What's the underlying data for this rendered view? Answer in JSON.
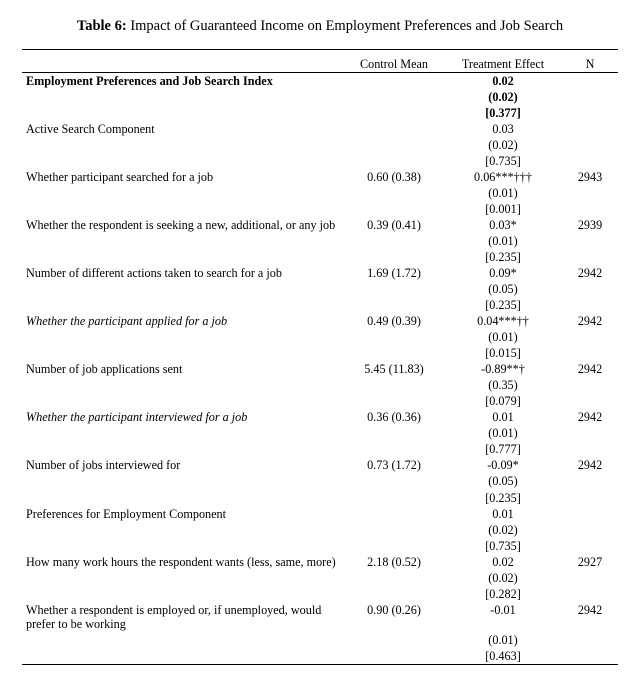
{
  "title_prefix": "Table 6:",
  "title_rest": " Impact of Guaranteed Income on Employment Preferences and Job Search",
  "headers": {
    "ctrl": "Control Mean",
    "te": "Treatment Effect",
    "n": "N"
  },
  "rows": [
    {
      "label": "Employment Preferences and Job Search Index",
      "bold": true,
      "ctrl": "",
      "te": "0.02",
      "te2": "(0.02)",
      "te3": "[0.377]",
      "n": "",
      "te_bold": true
    },
    {
      "label": "Active Search Component",
      "ctrl": "",
      "te": "0.03",
      "te2": "(0.02)",
      "te3": "[0.735]",
      "n": ""
    },
    {
      "label": "Whether participant searched for a job",
      "ctrl": "0.60 (0.38)",
      "te": "0.06***†††",
      "te2": "(0.01)",
      "te3": "[0.001]",
      "n": "2943"
    },
    {
      "label": "Whether the respondent is seeking a new, additional, or any job",
      "ctrl": "0.39 (0.41)",
      "te": "0.03*",
      "te2": "(0.01)",
      "te3": "[0.235]",
      "n": "2939"
    },
    {
      "label": "Number of different actions taken to search for a job",
      "ctrl": "1.69 (1.72)",
      "te": "0.09*",
      "te2": "(0.05)",
      "te3": "[0.235]",
      "n": "2942"
    },
    {
      "label": "Whether the participant applied for a job",
      "ital": true,
      "ctrl": "0.49 (0.39)",
      "te": "0.04***††",
      "te2": "(0.01)",
      "te3": "[0.015]",
      "n": "2942"
    },
    {
      "label": "Number of job applications sent",
      "ctrl": "5.45 (11.83)",
      "te": "-0.89**†",
      "te2": "(0.35)",
      "te3": "[0.079]",
      "n": "2942"
    },
    {
      "label": "Whether the participant interviewed for a job",
      "ital": true,
      "ctrl": "0.36 (0.36)",
      "te": "0.01",
      "te2": "(0.01)",
      "te3": "[0.777]",
      "n": "2942"
    },
    {
      "label": "Number of jobs interviewed for",
      "ctrl": "0.73 (1.72)",
      "te": "-0.09*",
      "te2": "(0.05)",
      "te3": "[0.235]",
      "n": "2942"
    },
    {
      "label": "Preferences for Employment Component",
      "ctrl": "",
      "te": "0.01",
      "te2": "(0.02)",
      "te3": "[0.735]",
      "n": ""
    },
    {
      "label": "How many work hours the respondent wants (less, same, more)",
      "ctrl": "2.18 (0.52)",
      "te": "0.02",
      "te2": "(0.02)",
      "te3": "[0.282]",
      "n": "2927"
    },
    {
      "label": "Whether a respondent is employed or, if unemployed, would prefer to be working",
      "ctrl": "0.90 (0.26)",
      "te": "-0.01",
      "te2": "(0.01)",
      "te3": "[0.463]",
      "n": "2942",
      "last": true
    }
  ]
}
